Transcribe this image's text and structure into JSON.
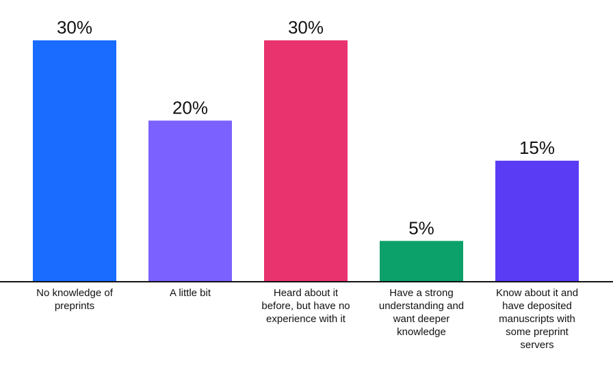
{
  "chart_data": {
    "type": "bar",
    "categories": [
      "No knowledge of preprints",
      "A little bit",
      "Heard about it before, but have no experience with it",
      "Have a strong understanding and want deeper knowledge",
      "Know about it and have deposited manuscripts with some preprint servers"
    ],
    "values": [
      30,
      20,
      30,
      5,
      15
    ],
    "value_labels": [
      "30%",
      "20%",
      "30%",
      "5%",
      "15%"
    ],
    "colors": [
      "#1a6bff",
      "#7b61ff",
      "#e8336f",
      "#0ca06a",
      "#5b3cf5"
    ]
  }
}
